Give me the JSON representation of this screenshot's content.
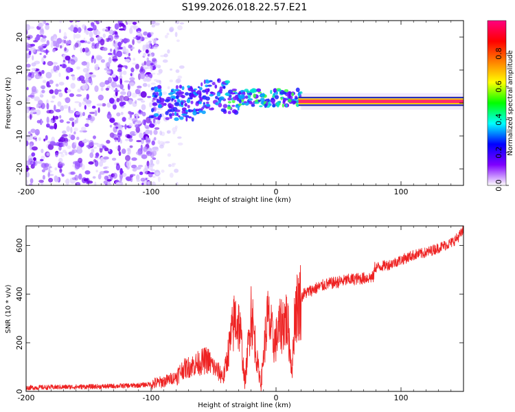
{
  "title": "S199.2026.018.22.57.E21",
  "chart_data": [
    {
      "type": "heatmap",
      "name": "spectrogram",
      "xlabel": "Height of straight line (km)",
      "ylabel": "Frequency (Hz)",
      "xlim": [
        -200,
        150
      ],
      "ylim": [
        -25,
        25
      ],
      "xticks": [
        -200,
        -100,
        0,
        100
      ],
      "yticks": [
        -20,
        -10,
        0,
        10,
        20
      ],
      "colorbar": {
        "label": "Normalized spectral amplitude",
        "range": [
          0,
          1
        ],
        "ticks": [
          "0.0",
          "0.2",
          "0.4",
          "0.6",
          "0.8"
        ],
        "colors": [
          "#ffffff",
          "#7f00ff",
          "#0000ff",
          "#00ffff",
          "#00ff00",
          "#ffff00",
          "#ff8000",
          "#ff0000",
          "#ff0080"
        ]
      },
      "regions": [
        {
          "x": [
            -200,
            -100
          ],
          "description": "scattered noise",
          "amplitude": 0.1
        },
        {
          "x": [
            -100,
            20
          ],
          "description": "signal emerging",
          "frequency_hz": 1.5,
          "amplitude": 0.4
        },
        {
          "x": [
            20,
            150
          ],
          "description": "steady tone",
          "frequency_hz": 0.5,
          "amplitude": 0.9
        }
      ]
    },
    {
      "type": "line",
      "name": "snr",
      "xlabel": "Height of straight line (km)",
      "ylabel": "SNR (10 * v/v)",
      "xlim": [
        -200,
        150
      ],
      "ylim": [
        0,
        680
      ],
      "xticks": [
        -200,
        -100,
        0,
        100
      ],
      "yticks": [
        0,
        200,
        400,
        600
      ],
      "color": "#ee2222",
      "series": [
        {
          "name": "SNR",
          "x": [
            -200,
            -170,
            -140,
            -110,
            -100,
            -90,
            -80,
            -75,
            -65,
            -55,
            -50,
            -42,
            -36,
            -33,
            -30,
            -28,
            -25,
            -22,
            -20,
            -18,
            -15,
            -12,
            -10,
            -7,
            -5,
            -2,
            0,
            2,
            5,
            8,
            10,
            12,
            13,
            15,
            18,
            22,
            30,
            40,
            50,
            60,
            70,
            78,
            79,
            80,
            90,
            100,
            110,
            120,
            130,
            140,
            145,
            150
          ],
          "y": [
            15,
            18,
            20,
            25,
            30,
            40,
            60,
            90,
            110,
            130,
            100,
            60,
            220,
            300,
            280,
            220,
            30,
            200,
            340,
            250,
            120,
            30,
            150,
            300,
            280,
            200,
            210,
            250,
            280,
            300,
            240,
            120,
            90,
            330,
            360,
            400,
            420,
            440,
            450,
            460,
            465,
            470,
            510,
            510,
            520,
            540,
            560,
            570,
            590,
            610,
            630,
            660
          ]
        }
      ]
    }
  ]
}
